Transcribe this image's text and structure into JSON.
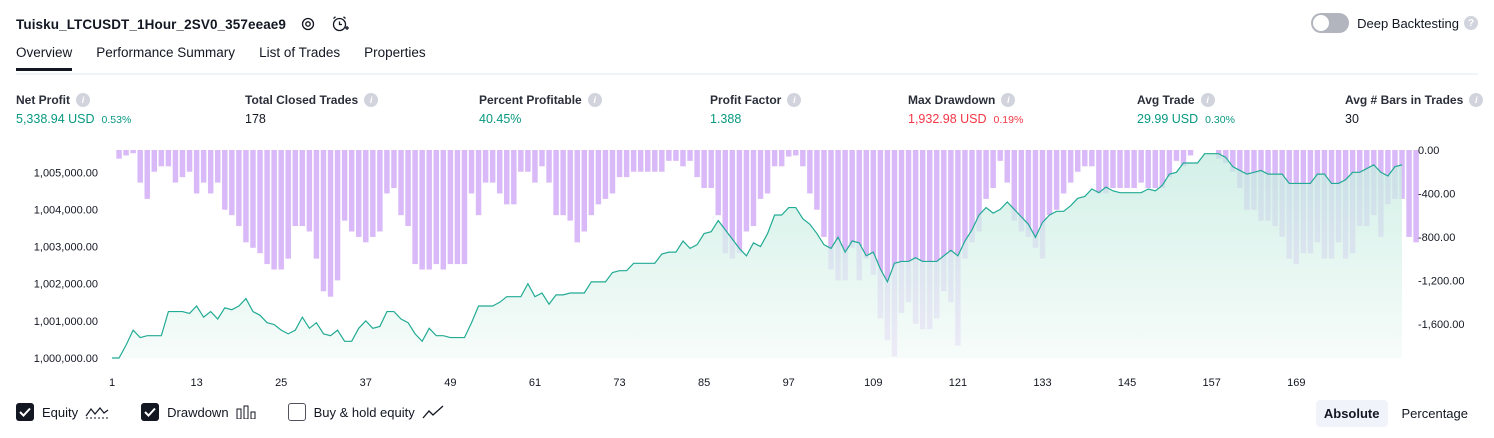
{
  "header": {
    "title": "Tuisku_LTCUSDT_1Hour_2SV0_357eeae9",
    "settings_icon": "gear-icon",
    "alert_icon": "alarm-clock-plus-icon"
  },
  "deep_backtesting": {
    "label": "Deep Backtesting",
    "enabled": false,
    "help": "?"
  },
  "tabs": [
    {
      "label": "Overview",
      "active": true
    },
    {
      "label": "Performance Summary",
      "active": false
    },
    {
      "label": "List of Trades",
      "active": false
    },
    {
      "label": "Properties",
      "active": false
    }
  ],
  "metrics": {
    "net_profit": {
      "label": "Net Profit",
      "value": "5,338.94 USD",
      "pct": "0.53%"
    },
    "total_closed_trades": {
      "label": "Total Closed Trades",
      "value": "178"
    },
    "percent_profitable": {
      "label": "Percent Profitable",
      "value": "40.45%"
    },
    "profit_factor": {
      "label": "Profit Factor",
      "value": "1.388"
    },
    "max_drawdown": {
      "label": "Max Drawdown",
      "value": "1,932.98 USD",
      "pct": "0.19%"
    },
    "avg_trade": {
      "label": "Avg Trade",
      "value": "29.99 USD",
      "pct": "0.30%"
    },
    "avg_bars": {
      "label": "Avg # Bars in Trades",
      "value": "30"
    }
  },
  "legend": {
    "equity": {
      "label": "Equity",
      "checked": true
    },
    "drawdown": {
      "label": "Drawdown",
      "checked": true
    },
    "buy_hold": {
      "label": "Buy & hold equity",
      "checked": false
    }
  },
  "modes": {
    "absolute": "Absolute",
    "percentage": "Percentage",
    "selected": "Absolute"
  },
  "colors": {
    "equity_line": "#22ab94",
    "equity_fill_top": "#c4ebe0",
    "drawdown_bar": "#d9b9f7",
    "positive": "#089981",
    "negative": "#f23645"
  },
  "chart_data": {
    "type": "area",
    "x_ticks": [
      "1",
      "13",
      "25",
      "37",
      "49",
      "61",
      "73",
      "85",
      "97",
      "109",
      "121",
      "133",
      "145",
      "157",
      "169"
    ],
    "y_left_ticks": [
      "1,000,000.00",
      "1,001,000.00",
      "1,002,000.00",
      "1,003,000.00",
      "1,004,000.00",
      "1,005,000.00"
    ],
    "y_right_ticks": [
      "0.00",
      "-400.00",
      "-800.00",
      "-1,200.00",
      "-1,600.00"
    ],
    "y_left_range": [
      1000000,
      1005600
    ],
    "y_right_range": [
      -1932.98,
      0
    ],
    "series": [
      {
        "name": "Equity",
        "values": [
          1000000,
          1000000,
          1000350,
          1000750,
          1000550,
          1000600,
          1000600,
          1000600,
          1001250,
          1001250,
          1001250,
          1001200,
          1001400,
          1001100,
          1001250,
          1001050,
          1001350,
          1001300,
          1001400,
          1001600,
          1001250,
          1001150,
          1000950,
          1000900,
          1000750,
          1000650,
          1000750,
          1001100,
          1000800,
          1000950,
          1000650,
          1000600,
          1000750,
          1000450,
          1000450,
          1000800,
          1001000,
          1000800,
          1000850,
          1001250,
          1001250,
          1001050,
          1000950,
          1000650,
          1000450,
          1000800,
          1000600,
          1000600,
          1000550,
          1000550,
          1000550,
          1000950,
          1001400,
          1001400,
          1001400,
          1001500,
          1001650,
          1001650,
          1001650,
          1002000,
          1001650,
          1001750,
          1001450,
          1001700,
          1001700,
          1001750,
          1001750,
          1001750,
          1002050,
          1002050,
          1002050,
          1002300,
          1002350,
          1002350,
          1002550,
          1002550,
          1002550,
          1002550,
          1002800,
          1002850,
          1002850,
          1003150,
          1002950,
          1003050,
          1003350,
          1003400,
          1003700,
          1003450,
          1003200,
          1002950,
          1002750,
          1003100,
          1003000,
          1003350,
          1003850,
          1003850,
          1004050,
          1004050,
          1003750,
          1003600,
          1003350,
          1003050,
          1002950,
          1003250,
          1002850,
          1003150,
          1003100,
          1002750,
          1002850,
          1002400,
          1002050,
          1002550,
          1002600,
          1002600,
          1002700,
          1002600,
          1002600,
          1002600,
          1002750,
          1002900,
          1002750,
          1003150,
          1003450,
          1003850,
          1004050,
          1003900,
          1004000,
          1004200,
          1004000,
          1003800,
          1003600,
          1003250,
          1003650,
          1003850,
          1003950,
          1003950,
          1004100,
          1004300,
          1004350,
          1004550,
          1004450,
          1004600,
          1004500,
          1004450,
          1004450,
          1004450,
          1004450,
          1004550,
          1004500,
          1004650,
          1004950,
          1005000,
          1005250,
          1005250,
          1005250,
          1005500,
          1005500,
          1005500,
          1005400,
          1005150,
          1005050,
          1004950,
          1005000,
          1005050,
          1004950,
          1004950,
          1004950,
          1004700,
          1004700,
          1004700,
          1004700,
          1004950,
          1004950,
          1004700,
          1004700,
          1004800,
          1005000,
          1005000,
          1005100,
          1005200,
          1005000,
          1004900,
          1005150,
          1005200
        ]
      },
      {
        "name": "Drawdown",
        "values": [
          0,
          -80,
          -50,
          -30,
          -300,
          -450,
          -200,
          -150,
          -150,
          -300,
          -250,
          -200,
          -400,
          -300,
          -400,
          -300,
          -550,
          -600,
          -700,
          -850,
          -900,
          -950,
          -1050,
          -1100,
          -1100,
          -1000,
          -700,
          -700,
          -750,
          -1000,
          -1300,
          -1350,
          -1200,
          -650,
          -750,
          -800,
          -850,
          -800,
          -750,
          -400,
          -350,
          -600,
          -700,
          -1050,
          -1100,
          -1100,
          -1050,
          -1100,
          -1050,
          -1050,
          -1050,
          -400,
          -600,
          -300,
          -300,
          -400,
          -500,
          -500,
          -200,
          -200,
          -300,
          -150,
          -300,
          -600,
          -600,
          -650,
          -850,
          -750,
          -600,
          -500,
          -450,
          -400,
          -250,
          -250,
          -200,
          -200,
          -200,
          -200,
          -200,
          -100,
          -100,
          -150,
          -100,
          -250,
          -350,
          -350,
          -600,
          -950,
          -1000,
          -950,
          -750,
          -700,
          -450,
          -400,
          -150,
          -150,
          -60,
          -50,
          -150,
          -400,
          -550,
          -800,
          -1100,
          -1200,
          -1200,
          -900,
          -1200,
          -1000,
          -1150,
          -1550,
          -1750,
          -1900,
          -1500,
          -1400,
          -1600,
          -1650,
          -1650,
          -1550,
          -1300,
          -1400,
          -1800,
          -1000,
          -850,
          -750,
          -450,
          -350,
          -100,
          -300,
          -650,
          -750,
          -800,
          -900,
          -1000,
          -600,
          -550,
          -400,
          -300,
          -200,
          -150,
          -150,
          -400,
          -400,
          -350,
          -350,
          -350,
          -350,
          -300,
          -350,
          -350,
          -350,
          -250,
          -100,
          -150,
          -50,
          0,
          0,
          0,
          -80,
          -120,
          -200,
          -350,
          -550,
          -550,
          -650,
          -650,
          -700,
          -800,
          -1000,
          -1050,
          -950,
          -950,
          -850,
          -1000,
          -1000,
          -850,
          -1000,
          -950,
          -700,
          -700,
          -600,
          -800,
          -500,
          -450,
          -450,
          -800,
          -850
        ]
      }
    ]
  }
}
